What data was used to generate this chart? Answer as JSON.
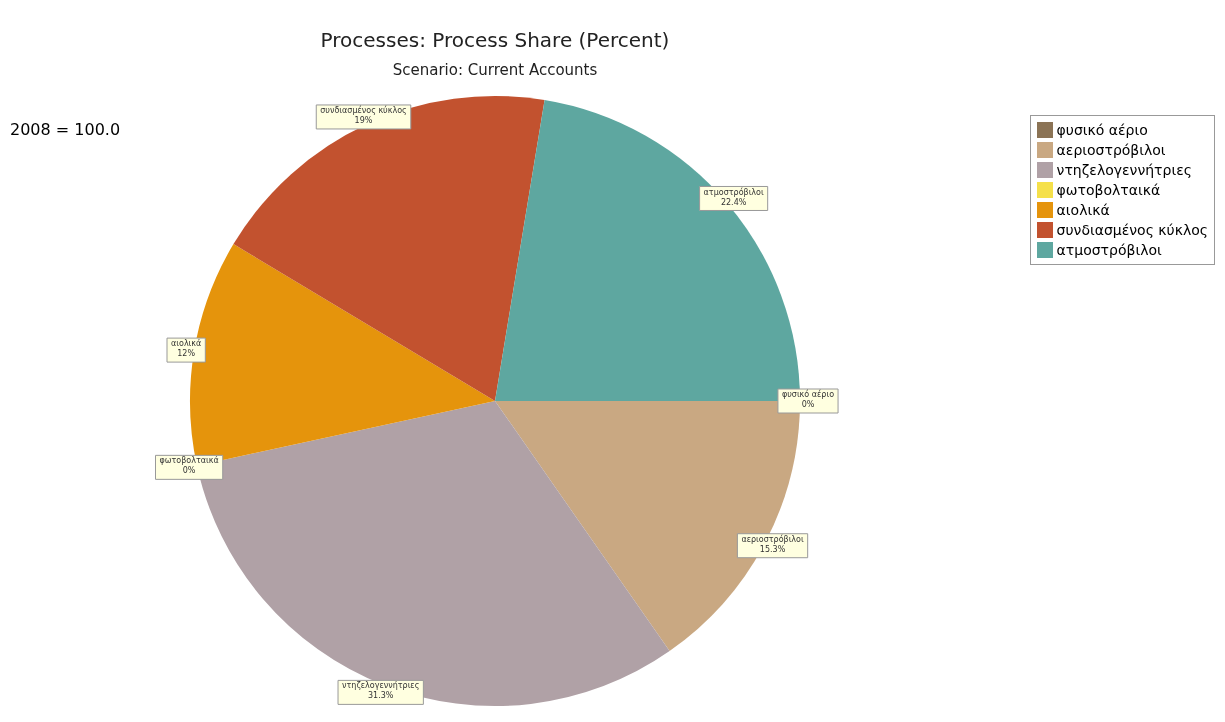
{
  "chart_data": {
    "type": "pie",
    "title": "Processes: Process Share (Percent)",
    "subtitle": "Scenario: Current Accounts",
    "categories": [
      "φυσικό αέριο",
      "αεριοστρόβιλοι",
      "ντηζελογεννήτριες",
      "φωτοβολταικά",
      "αιολικά",
      "συνδιασμένος κύκλος",
      "ατμοστρόβιλοι"
    ],
    "values": [
      0,
      15.3,
      31.3,
      0,
      12,
      19,
      22.4
    ],
    "colors": [
      "#8b7355",
      "#c9a882",
      "#b0a1a6",
      "#f5e04a",
      "#e5940c",
      "#c2522f",
      "#5ea7a0"
    ],
    "value_labels": [
      "0%",
      "15.3%",
      "31.3%",
      "0%",
      "12%",
      "19%",
      "22.4%"
    ],
    "annotations": [
      "2008 = 100.0"
    ],
    "legend": "top right"
  }
}
